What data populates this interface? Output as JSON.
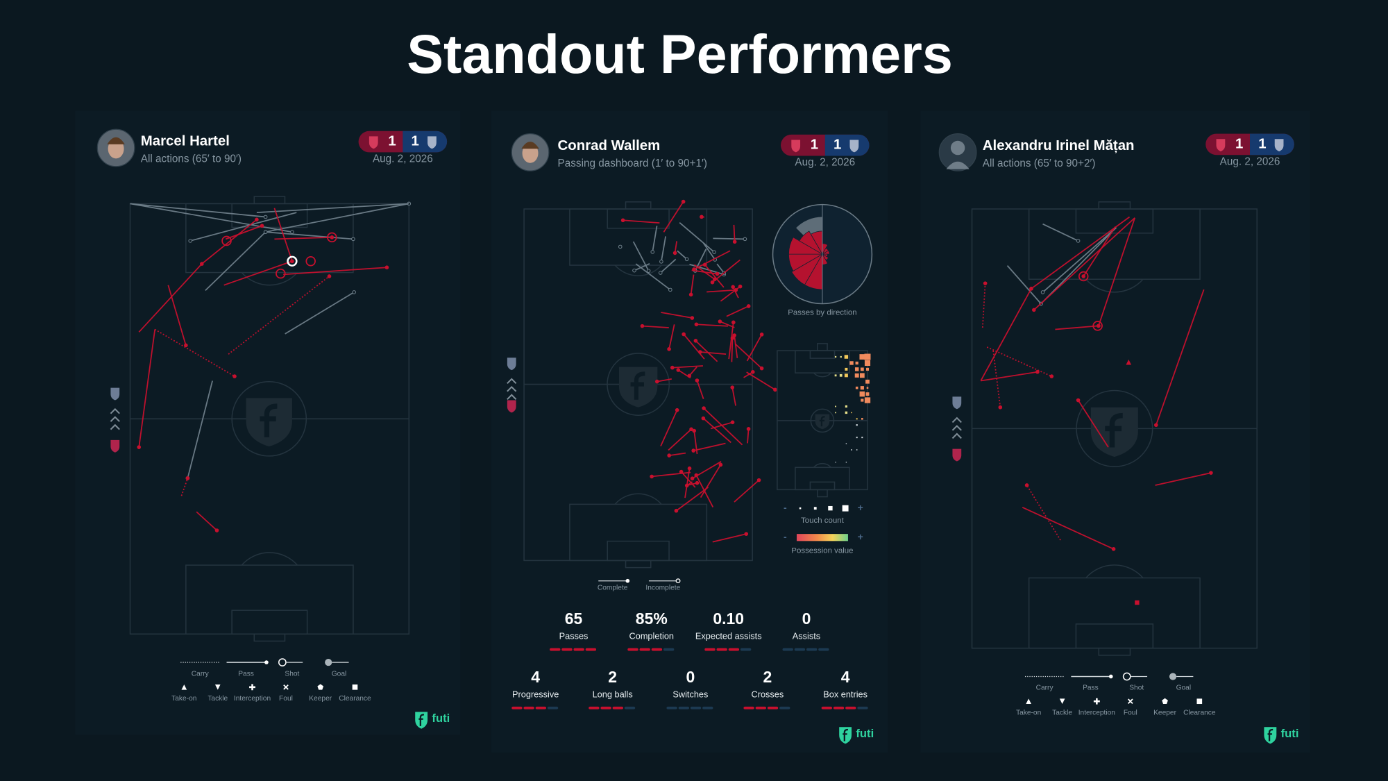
{
  "title": "Standout Performers",
  "panels": [
    {
      "name": "Marcel Hartel",
      "subtitle": "All actions (65′ to 90′)",
      "score": {
        "home": 1,
        "away": 1
      },
      "date": "Aug. 2, 2026",
      "legend": {
        "lines": [
          "Carry",
          "Pass",
          "Shot",
          "Goal"
        ],
        "symbols": [
          "Take-on",
          "Tackle",
          "Interception",
          "Foul",
          "Keeper",
          "Clearance"
        ]
      },
      "brand": "futi"
    },
    {
      "name": "Conrad Wallem",
      "subtitle": "Passing dashboard (1′ to 90+1′)",
      "score": {
        "home": 1,
        "away": 1
      },
      "date": "Aug. 2, 2026",
      "direction_label": "Passes by direction",
      "touch_label": "Touch count",
      "touch_scale": [
        "-",
        "+"
      ],
      "value_label": "Possession value",
      "value_scale": [
        "-",
        "+"
      ],
      "pass_legend": [
        "Complete",
        "Incomplete"
      ],
      "stats": [
        {
          "value": "65",
          "label": "Passes"
        },
        {
          "value": "85%",
          "label": "Completion"
        },
        {
          "value": "0.10",
          "label": "Expected assists"
        },
        {
          "value": "0",
          "label": "Assists"
        },
        {
          "value": "4",
          "label": "Progressive"
        },
        {
          "value": "2",
          "label": "Long balls"
        },
        {
          "value": "0",
          "label": "Switches"
        },
        {
          "value": "2",
          "label": "Crosses"
        },
        {
          "value": "4",
          "label": "Box entries"
        }
      ],
      "brand": "futi"
    },
    {
      "name": "Alexandru Irinel Mățan",
      "subtitle": "All actions (65′ to 90+2′)",
      "score": {
        "home": 1,
        "away": 1
      },
      "date": "Aug. 2, 2026",
      "legend": {
        "lines": [
          "Carry",
          "Pass",
          "Shot",
          "Goal"
        ],
        "symbols": [
          "Take-on",
          "Tackle",
          "Interception",
          "Foul",
          "Keeper",
          "Clearance"
        ]
      },
      "brand": "futi"
    }
  ]
}
